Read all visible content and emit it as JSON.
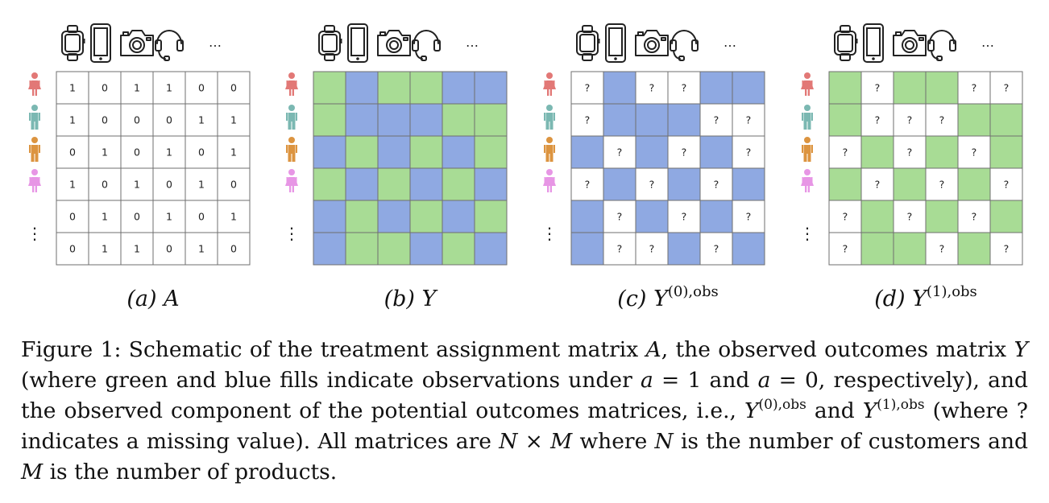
{
  "colors": {
    "green": "#a8dc95",
    "blue": "#8fa9e2",
    "grid": "#6f6f6f",
    "person_colors": [
      "#e27876",
      "#7bb8b2",
      "#dc9440",
      "#e796e5"
    ]
  },
  "icons": [
    "smartwatch-icon",
    "smartphone-icon",
    "camera-icon",
    "headset-icon"
  ],
  "ellipsis": "…",
  "vdots": "⋮",
  "panels": [
    {
      "kind": "values",
      "caption_letter": "(a)",
      "caption_symbol": "A",
      "caption_sup": "",
      "matrix": [
        [
          1,
          0,
          1,
          1,
          0,
          0
        ],
        [
          1,
          0,
          0,
          0,
          1,
          1
        ],
        [
          0,
          1,
          0,
          1,
          0,
          1
        ],
        [
          1,
          0,
          1,
          0,
          1,
          0
        ],
        [
          0,
          1,
          0,
          1,
          0,
          1
        ],
        [
          0,
          1,
          1,
          0,
          1,
          0
        ]
      ]
    },
    {
      "kind": "filled",
      "caption_letter": "(b)",
      "caption_symbol": "Y",
      "caption_sup": "",
      "matrix": [
        [
          1,
          0,
          1,
          1,
          0,
          0
        ],
        [
          1,
          0,
          0,
          0,
          1,
          1
        ],
        [
          0,
          1,
          0,
          1,
          0,
          1
        ],
        [
          1,
          0,
          1,
          0,
          1,
          0
        ],
        [
          0,
          1,
          0,
          1,
          0,
          1
        ],
        [
          0,
          1,
          1,
          0,
          1,
          0
        ]
      ]
    },
    {
      "kind": "observed",
      "observed_value": 0,
      "caption_letter": "(c)",
      "caption_symbol": "Y",
      "caption_sup": "(0),obs",
      "missing_mark": "?",
      "matrix": [
        [
          1,
          0,
          1,
          1,
          0,
          0
        ],
        [
          1,
          0,
          0,
          0,
          1,
          1
        ],
        [
          0,
          1,
          0,
          1,
          0,
          1
        ],
        [
          1,
          0,
          1,
          0,
          1,
          0
        ],
        [
          0,
          1,
          0,
          1,
          0,
          1
        ],
        [
          0,
          1,
          1,
          0,
          1,
          0
        ]
      ]
    },
    {
      "kind": "observed",
      "observed_value": 1,
      "caption_letter": "(d)",
      "caption_symbol": "Y",
      "caption_sup": "(1),obs",
      "missing_mark": "?",
      "matrix": [
        [
          1,
          0,
          1,
          1,
          0,
          0
        ],
        [
          1,
          0,
          0,
          0,
          1,
          1
        ],
        [
          0,
          1,
          0,
          1,
          0,
          1
        ],
        [
          1,
          0,
          1,
          0,
          1,
          0
        ],
        [
          0,
          1,
          0,
          1,
          0,
          1
        ],
        [
          0,
          1,
          1,
          0,
          1,
          0
        ]
      ]
    }
  ],
  "caption": {
    "p1": "Figure 1: Schematic of the treatment assignment matrix ",
    "s_A": "A",
    "p2": ", the observed outcomes matrix ",
    "s_Y1": "Y",
    "p3": " (where green and blue fills indicate observations under ",
    "s_a1": "a",
    "p4": " = 1 and ",
    "s_a2": "a",
    "p5": " = 0, respectively), and the observed component of the potential outcomes matrices, i.e., ",
    "s_Y2": "Y",
    "sup1": "(0),obs",
    "p6": " and ",
    "s_Y3": "Y",
    "sup2": "(1),obs",
    "p7": " (where ? indicates a missing value). All matrices are ",
    "s_N1": "N",
    "p8": " × ",
    "s_M1": "M",
    "p9": " where ",
    "s_N2": "N",
    "p10": " is the number of customers and ",
    "s_M2": "M",
    "p11": " is the number of products."
  }
}
